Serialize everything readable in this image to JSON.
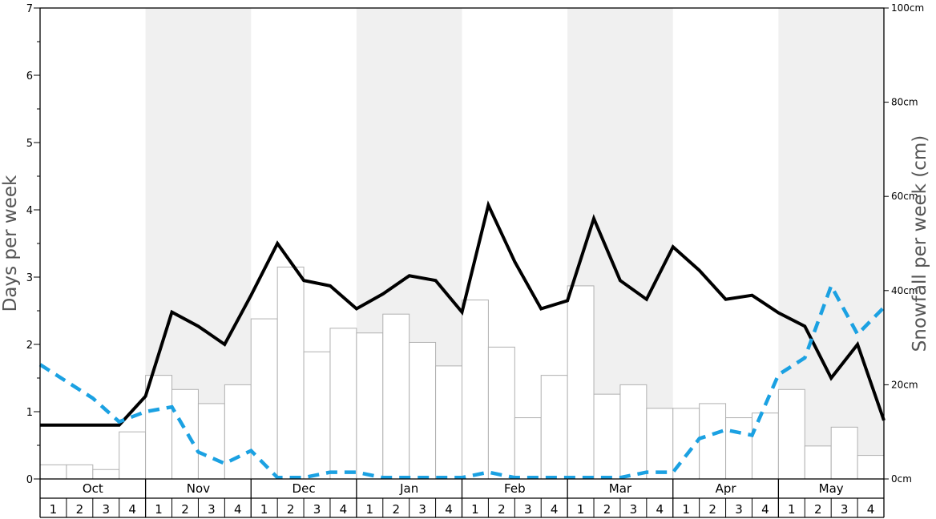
{
  "chart_data": {
    "type": "bar",
    "left_axis": {
      "label": "Days per week",
      "range": [
        0,
        7
      ],
      "ticks": [
        "0",
        "1",
        "2",
        "3",
        "4",
        "5",
        "6",
        "7"
      ]
    },
    "right_axis": {
      "label": "Snowfall per week (cm)",
      "range": [
        0,
        100
      ],
      "ticks": [
        "0cm",
        "20cm",
        "40cm",
        "60cm",
        "80cm",
        "100cm"
      ]
    },
    "months": [
      "Oct",
      "Nov",
      "Dec",
      "Jan",
      "Feb",
      "Mar",
      "Apr",
      "May"
    ],
    "weeks": [
      "1",
      "2",
      "3",
      "4"
    ],
    "grid": false,
    "shaded_months": [
      "Nov",
      "Jan",
      "Mar",
      "May"
    ],
    "colors": {
      "bars_fill": "#ffffff",
      "bars_stroke": "#b0b0b0",
      "snow_days_line": "#000000",
      "dashed_line": "#1ba1e2",
      "band": "#f0f0f0"
    },
    "series": [
      {
        "kind": "bar",
        "axis": "right",
        "values": [
          3,
          3,
          2,
          10,
          22,
          19,
          16,
          20,
          34,
          45,
          27,
          32,
          31,
          35,
          29,
          24,
          38,
          28,
          13,
          22,
          41,
          18,
          20,
          15,
          15,
          16,
          13,
          14,
          19,
          7,
          11,
          5
        ]
      },
      {
        "kind": "line",
        "axis": "left",
        "style": "solid",
        "values": [
          0.8,
          0.8,
          0.8,
          0.8,
          1.23,
          2.48,
          2.27,
          2.0,
          2.73,
          3.5,
          2.95,
          2.87,
          2.53,
          2.75,
          3.02,
          2.95,
          2.48,
          4.07,
          3.23,
          2.53,
          2.65,
          3.87,
          2.95,
          2.67,
          3.45,
          3.1,
          2.67,
          2.73,
          2.47,
          2.27,
          1.5,
          2.0,
          0.87
        ]
      },
      {
        "kind": "line",
        "axis": "left",
        "style": "dashed",
        "values": [
          1.7,
          1.45,
          1.2,
          0.85,
          1.0,
          1.07,
          0.4,
          0.23,
          0.42,
          0.02,
          0.02,
          0.1,
          0.1,
          0.02,
          0.02,
          0.02,
          0.02,
          0.1,
          0.02,
          0.02,
          0.02,
          0.02,
          0.02,
          0.1,
          0.1,
          0.6,
          0.73,
          0.65,
          1.55,
          1.8,
          2.87,
          2.15,
          2.55
        ]
      }
    ]
  }
}
